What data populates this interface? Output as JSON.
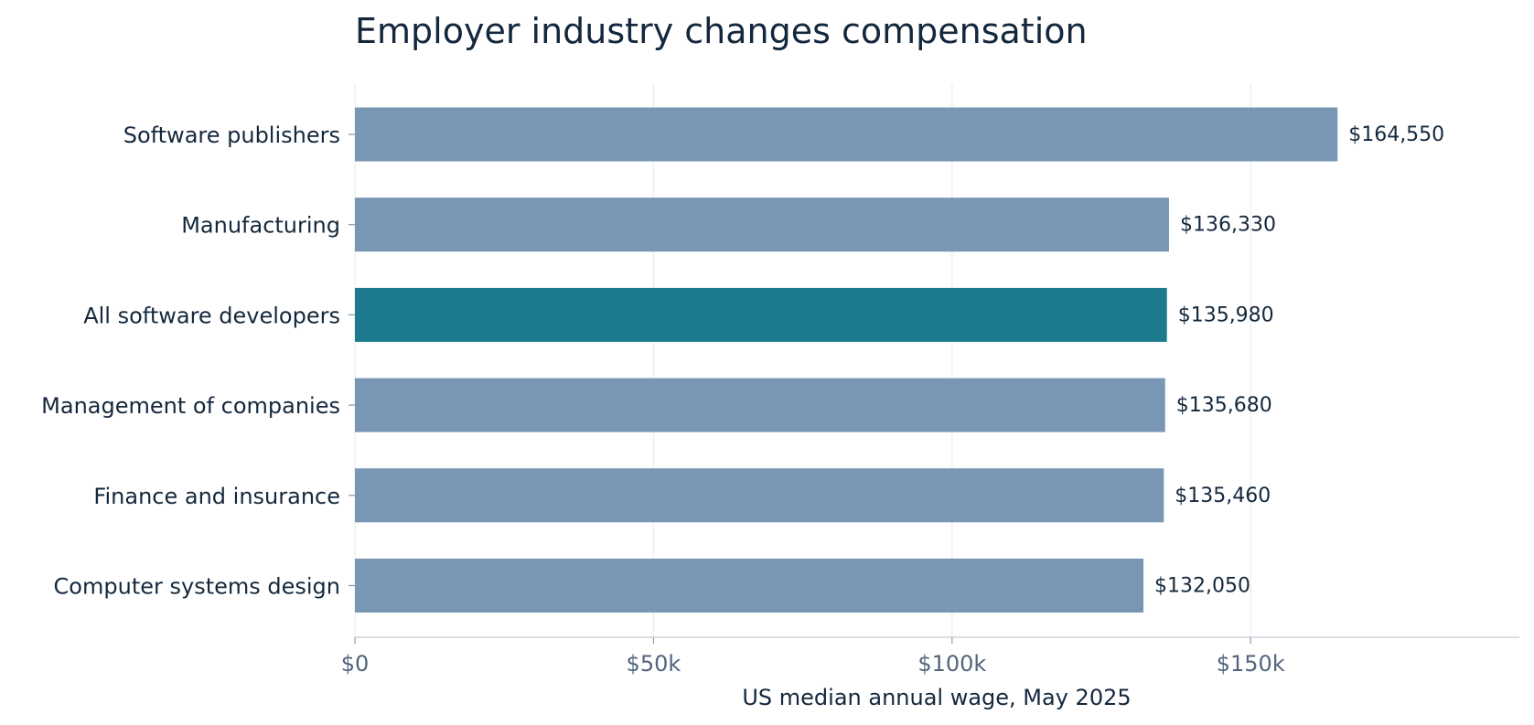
{
  "chart_data": {
    "type": "bar",
    "orientation": "horizontal",
    "title": "Employer industry changes compensation",
    "xlabel": "US median annual wage, May 2025",
    "ylabel": "",
    "xlim": [
      0,
      195000
    ],
    "xticks": [
      0,
      50000,
      100000,
      150000
    ],
    "xtick_labels": [
      "$0",
      "$50k",
      "$100k",
      "$150k"
    ],
    "grid": "vertical",
    "categories": [
      "Software publishers",
      "Manufacturing",
      "All software developers",
      "Management of companies",
      "Finance and insurance",
      "Computer systems design"
    ],
    "values": [
      164550,
      136330,
      135980,
      135680,
      135460,
      132050
    ],
    "value_labels": [
      "$164,550",
      "$136,330",
      "$135,980",
      "$135,680",
      "$135,460",
      "$132,050"
    ],
    "highlight": "All software developers",
    "colors": {
      "bar": "#7997b4",
      "highlight": "#1c7a8c"
    }
  }
}
